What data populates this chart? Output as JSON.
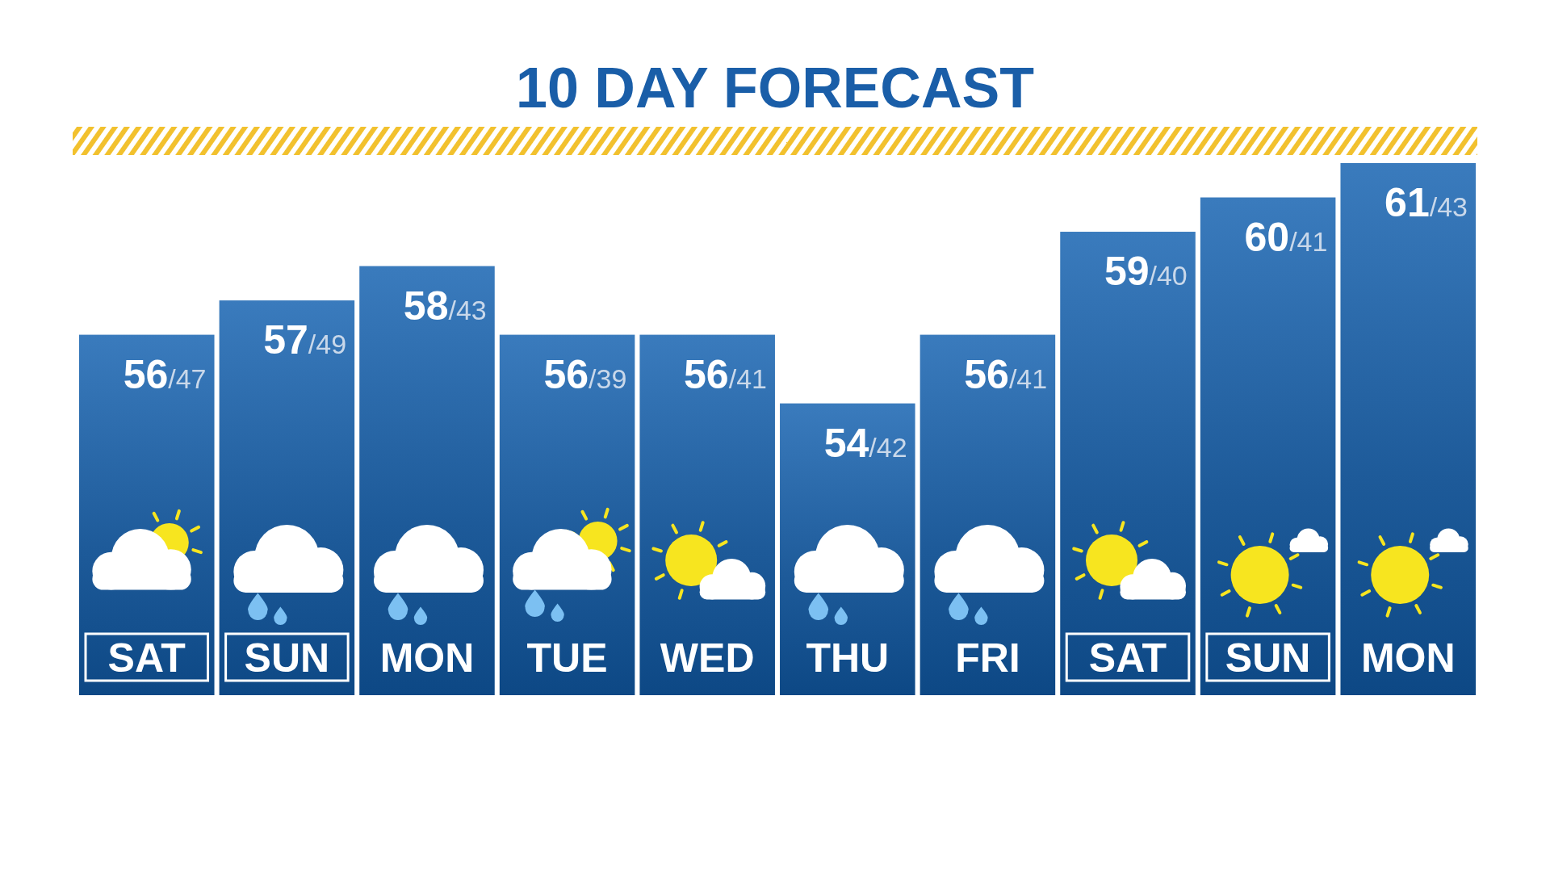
{
  "chart_data": {
    "type": "bar",
    "title": "10 DAY FORECAST",
    "ylim": [
      45.5,
      61
    ],
    "categories": [
      "SAT",
      "SUN",
      "MON",
      "TUE",
      "WED",
      "THU",
      "FRI",
      "SAT",
      "SUN",
      "MON"
    ],
    "values": [
      56,
      57,
      58,
      56,
      56,
      54,
      56,
      59,
      60,
      61
    ],
    "value_labels": [
      "56/47",
      "57/49",
      "58/43",
      "56/39",
      "56/41",
      "54/42",
      "56/41",
      "59/40",
      "60/41",
      "61/43"
    ],
    "color": "#1d5a99"
  }
}
